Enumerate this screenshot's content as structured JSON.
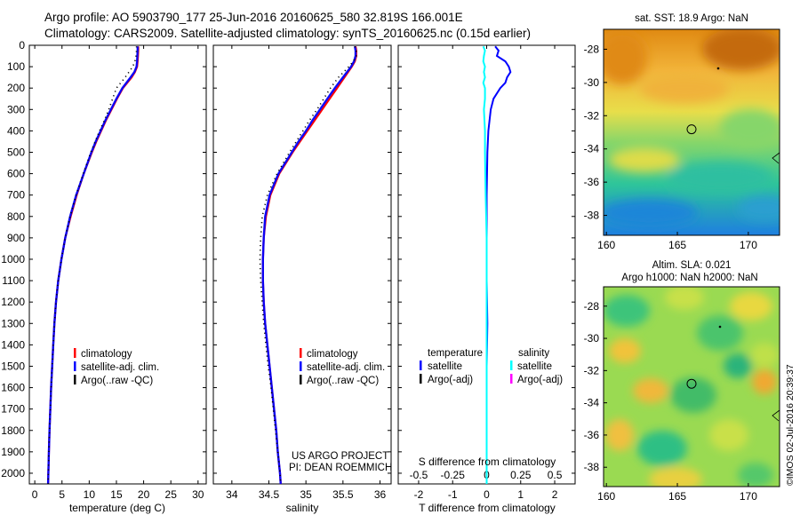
{
  "header": {
    "line1": "Argo profile: AO 5903790_177 25-Jun-2016 20160625_580 32.819S 166.001E",
    "line2": "Climatology: CARS2009. Satellite-adjusted climatology: synTS_20160625.nc (0.15d earlier)"
  },
  "colors": {
    "climatology": "#ff0000",
    "satellite": "#0000ff",
    "argo": "#000000",
    "sal_satellite": "#00ffff",
    "sal_argo": "#ff00ff"
  },
  "annotations": {
    "project_line1": "US ARGO PROJECT",
    "project_line2": "PI: DEAN ROEMMICH",
    "credit": "©IMOS 02-Jul-2016 20:39:37"
  },
  "chart_data": [
    {
      "type": "line",
      "name": "temperature-profile",
      "xlabel": "temperature (deg C)",
      "ylabel": "",
      "xlim": [
        -1,
        31.5
      ],
      "ylim": [
        2050,
        0
      ],
      "xticks": [
        0,
        5,
        10,
        15,
        20,
        25,
        30
      ],
      "yticks": [
        0,
        100,
        200,
        300,
        400,
        500,
        600,
        700,
        800,
        900,
        1000,
        1100,
        1200,
        1300,
        1400,
        1500,
        1600,
        1700,
        1800,
        1900,
        2000
      ],
      "legend": [
        "climatology",
        "satellite-adj. clim.",
        "Argo(..raw -QC)"
      ],
      "depth": [
        5,
        25,
        50,
        75,
        100,
        125,
        150,
        200,
        250,
        300,
        350,
        400,
        450,
        500,
        600,
        700,
        800,
        900,
        1000,
        1100,
        1200,
        1300,
        1400,
        1500,
        1600,
        1700,
        1800,
        1900,
        2000,
        2050
      ],
      "series": [
        {
          "name": "climatology",
          "values": [
            19.0,
            19.0,
            18.95,
            18.9,
            18.8,
            18.4,
            17.8,
            16.2,
            15.1,
            14.1,
            13.1,
            12.2,
            11.3,
            10.5,
            9.0,
            7.7,
            6.6,
            5.6,
            4.9,
            4.3,
            3.9,
            3.6,
            3.4,
            3.2,
            3.0,
            2.85,
            2.7,
            2.6,
            2.5,
            2.45
          ]
        },
        {
          "name": "satellite-adj. clim.",
          "values": [
            18.9,
            18.9,
            18.85,
            18.8,
            18.7,
            18.3,
            17.6,
            16.1,
            15.0,
            14.0,
            13.0,
            12.1,
            11.2,
            10.4,
            9.0,
            7.6,
            6.5,
            5.6,
            4.9,
            4.3,
            3.9,
            3.6,
            3.4,
            3.2,
            3.0,
            2.85,
            2.7,
            2.6,
            2.5,
            2.45
          ]
        },
        {
          "name": "Argo(..raw -QC)",
          "values": [
            18.7,
            18.7,
            18.6,
            18.4,
            18.0,
            17.3,
            16.6,
            15.0,
            14.3,
            13.6,
            12.8,
            11.9,
            11.1,
            10.3,
            8.9,
            7.6,
            6.5,
            5.6,
            4.9,
            4.3,
            3.9,
            3.6,
            3.4,
            3.2,
            3.0,
            2.85,
            2.7,
            2.6,
            2.5,
            2.45
          ]
        }
      ]
    },
    {
      "type": "line",
      "name": "salinity-profile",
      "xlabel": "salinity",
      "xlim": [
        33.75,
        36.15
      ],
      "ylim": [
        2050,
        0
      ],
      "xticks": [
        34,
        34.5,
        35,
        35.5,
        36
      ],
      "legend": [
        "climatology",
        "satellite-adj. clim.",
        "Argo(..raw -QC)"
      ],
      "depth": [
        5,
        25,
        50,
        75,
        100,
        150,
        200,
        250,
        300,
        350,
        400,
        450,
        500,
        600,
        700,
        800,
        900,
        1000,
        1100,
        1200,
        1300,
        1400,
        1500,
        1600,
        1700,
        1800,
        1900,
        2000,
        2050
      ],
      "series": [
        {
          "name": "climatology",
          "values": [
            35.67,
            35.68,
            35.68,
            35.66,
            35.62,
            35.52,
            35.42,
            35.32,
            35.22,
            35.12,
            35.02,
            34.92,
            34.82,
            34.64,
            34.52,
            34.46,
            34.43,
            34.42,
            34.42,
            34.43,
            34.45,
            34.48,
            34.51,
            34.54,
            34.57,
            34.6,
            34.62,
            34.65,
            34.66
          ]
        },
        {
          "name": "satellite-adj. clim.",
          "values": [
            35.66,
            35.67,
            35.67,
            35.65,
            35.61,
            35.5,
            35.39,
            35.29,
            35.19,
            35.09,
            35.0,
            34.9,
            34.81,
            34.63,
            34.51,
            34.45,
            34.43,
            34.42,
            34.42,
            34.43,
            34.45,
            34.48,
            34.51,
            34.54,
            34.57,
            34.6,
            34.62,
            34.65,
            34.66
          ]
        },
        {
          "name": "Argo(..raw -QC)",
          "values": [
            35.66,
            35.68,
            35.68,
            35.64,
            35.58,
            35.44,
            35.33,
            35.24,
            35.15,
            35.05,
            34.96,
            34.87,
            34.78,
            34.61,
            34.48,
            34.41,
            34.39,
            34.38,
            34.39,
            34.41,
            34.43,
            34.46,
            34.49,
            34.53,
            34.56,
            34.59,
            34.62,
            34.65,
            34.66
          ]
        }
      ]
    },
    {
      "type": "line",
      "name": "difference-profile",
      "xlabel": "T difference from climatology",
      "xlabel_top": "S difference from climatology",
      "xlim": [
        -2.6,
        2.6
      ],
      "ylim": [
        2050,
        0
      ],
      "xticks": [
        -2,
        -1,
        0,
        1,
        2
      ],
      "xticks_top": [
        "-0.5",
        "-0.25",
        "0",
        "0.25",
        "0.5"
      ],
      "legend_heading_t": "temperature",
      "legend_heading_s": "salinity",
      "legend": [
        "satellite",
        "Argo(-adj)",
        "satellite",
        "Argo(-adj)"
      ],
      "depth": [
        5,
        25,
        50,
        75,
        100,
        125,
        150,
        175,
        200,
        250,
        300,
        400,
        500,
        700,
        900,
        1100,
        1300,
        1500,
        1700,
        1900,
        2050
      ],
      "series": [
        {
          "name": "temperature satellite",
          "values": [
            0.25,
            0.35,
            0.3,
            0.55,
            0.65,
            0.7,
            0.6,
            0.55,
            0.4,
            0.2,
            0.12,
            0.05,
            0.02,
            0.0,
            0.0,
            0.0,
            0.02,
            0.0,
            0.0,
            0.0,
            0.0
          ]
        },
        {
          "name": "salinity satellite",
          "values": [
            -0.1,
            -0.05,
            -0.08,
            -0.1,
            -0.05,
            -0.08,
            -0.05,
            -0.1,
            -0.05,
            -0.05,
            -0.08,
            -0.05,
            -0.05,
            -0.03,
            0.0,
            0.0,
            0.0,
            0.0,
            0.0,
            0.0,
            0.0
          ]
        }
      ]
    },
    {
      "type": "heatmap",
      "name": "sst-map",
      "title": "sat. SST: 18.9 Argo: NaN",
      "xticks": [
        160,
        165,
        170
      ],
      "yticks": [
        -28,
        -30,
        -32,
        -34,
        -36,
        -38
      ],
      "xlim": [
        159.8,
        172.2
      ],
      "ylim": [
        -39.2,
        -26.8
      ],
      "argo_position": [
        166.001,
        -32.819
      ]
    },
    {
      "type": "heatmap",
      "name": "sla-map",
      "title_line1": "Altim. SLA: 0.021",
      "title_line2": "Argo h1000: NaN h2000: NaN",
      "xticks": [
        160,
        165,
        170
      ],
      "yticks": [
        -28,
        -30,
        -32,
        -34,
        -36,
        -38
      ],
      "xlim": [
        159.8,
        172.2
      ],
      "ylim": [
        -39.2,
        -26.8
      ],
      "argo_position": [
        166.001,
        -32.819
      ]
    }
  ]
}
